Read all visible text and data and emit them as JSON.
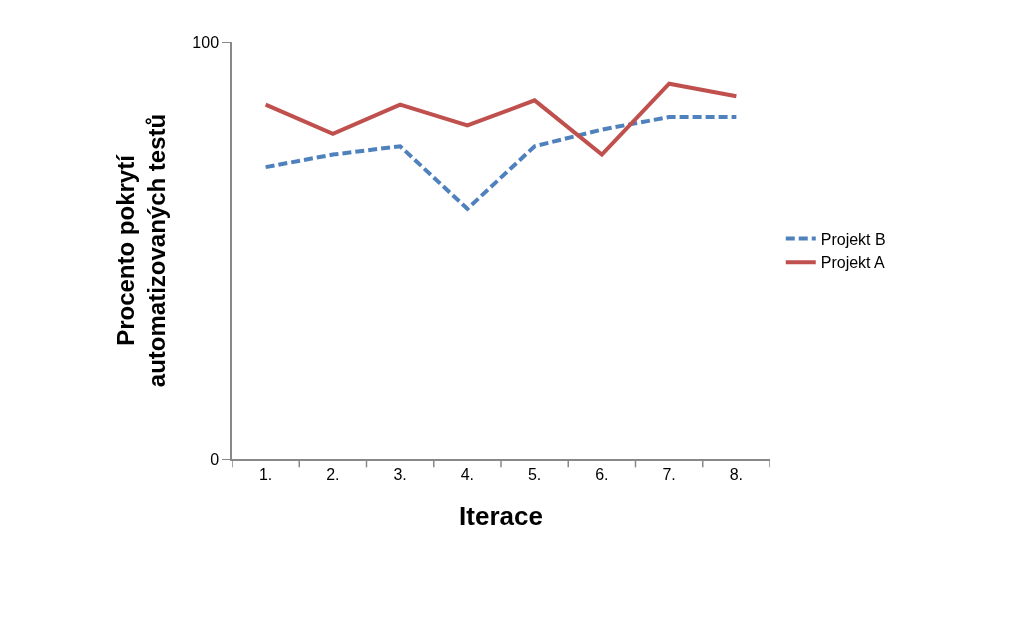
{
  "chart_data": {
    "type": "line",
    "xlabel": "Iterace",
    "ylabel": "Procento pokrytí automatizovaných testů",
    "categories": [
      "1.",
      "2.",
      "3.",
      "4.",
      "5.",
      "6.",
      "7.",
      "8."
    ],
    "series": [
      {
        "name": "Projekt B",
        "color": "#4f81bd",
        "line_style": "dashed",
        "values": [
          70,
          73,
          75,
          60,
          75,
          79,
          82,
          82
        ]
      },
      {
        "name": "Projekt A",
        "color": "#c0504d",
        "line_style": "solid",
        "values": [
          85,
          78,
          85,
          80,
          86,
          73,
          90,
          87
        ]
      }
    ],
    "ylim": [
      0,
      100
    ],
    "yticks": [
      0,
      100
    ],
    "legend": "right",
    "marker": "none"
  }
}
